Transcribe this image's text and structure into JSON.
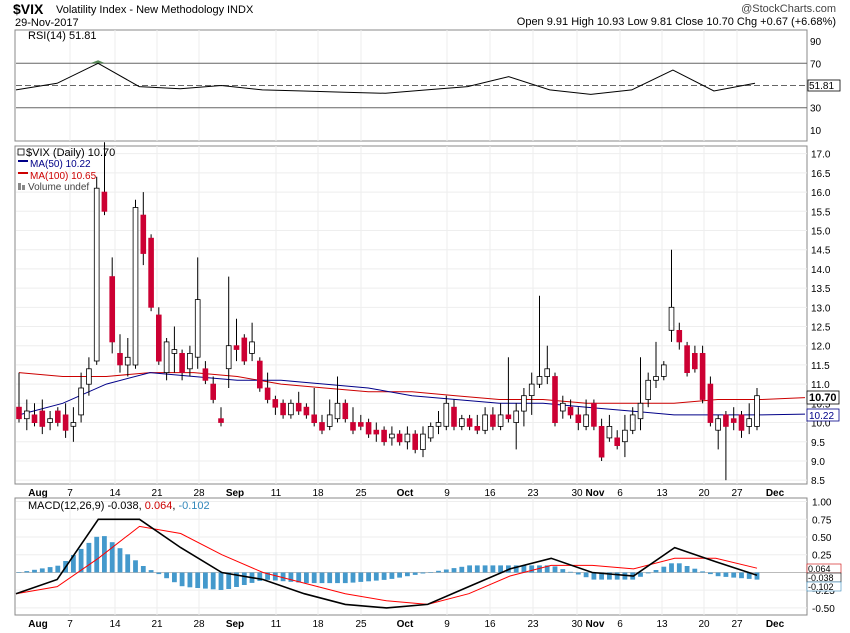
{
  "header": {
    "ticker": "$VIX",
    "name": "Volatility Index - New Methodology",
    "exchange": "INDX",
    "date": "29-Nov-2017",
    "watermark": "@StockCharts.com",
    "ohlc_text": "Open 9.91  High 10.93  Low 9.81  Close 10.70  Chg +0.67 (+6.68%)",
    "arrow_glyph": "▲"
  },
  "rsi_panel": {
    "label": "RSI(14) 51.81",
    "value_tag": "51.81",
    "y_ticks": [
      "90",
      "70",
      "50",
      "30",
      "10"
    ]
  },
  "price_panel": {
    "legend": [
      "$VIX (Daily) 10.70",
      "MA(50) 10.22",
      "MA(100) 10.65",
      "Volume undef"
    ],
    "close_tag": "10.70",
    "ma_tag": "10.22",
    "y_ticks": [
      "17.0",
      "16.5",
      "16.0",
      "15.5",
      "15.0",
      "14.5",
      "14.0",
      "13.5",
      "13.0",
      "12.5",
      "12.0",
      "11.5",
      "11.0",
      "10.5",
      "10.0",
      "9.5",
      "9.0",
      "8.5"
    ]
  },
  "macd_panel": {
    "label_main": "MACD(12,26,9) -0.038",
    "label_signal": "0.064",
    "label_hist": "-0.102",
    "tag_signal": "0.064",
    "tag_macd": "-0.038",
    "tag_hist": "-0.102",
    "y_ticks": [
      "1.00",
      "0.75",
      "0.50",
      "0.25",
      "0.00",
      "-0.25",
      "-0.50"
    ]
  },
  "x_labels": [
    "Aug",
    "7",
    "14",
    "21",
    "28",
    "Sep",
    "11",
    "18",
    "25",
    "Oct",
    "9",
    "16",
    "23",
    "30",
    "Nov",
    "6",
    "13",
    "20",
    "27",
    "Dec"
  ],
  "colors": {
    "up": "#ffffff",
    "down": "#cc0033",
    "ma50": "#000088",
    "ma100": "#cc0000",
    "macd": "#000000",
    "signal": "#ff0000",
    "hist": "#4499cc",
    "rsi_fill": "#558855"
  },
  "chart_data": [
    {
      "type": "line",
      "title": "RSI(14)",
      "ylim": [
        0,
        100
      ],
      "reference_lines": [
        70,
        50,
        30
      ],
      "x": [
        "Aug",
        "7",
        "14",
        "21",
        "28",
        "Sep",
        "11",
        "18",
        "25",
        "Oct",
        "9",
        "16",
        "23",
        "30",
        "Nov",
        "6",
        "13",
        "20",
        "27"
      ],
      "values": [
        46,
        52,
        70,
        49,
        47,
        50,
        46,
        45,
        44,
        43,
        46,
        49,
        58,
        46,
        42,
        46,
        64,
        45,
        52
      ]
    },
    {
      "type": "candlestick",
      "title": "$VIX (Daily) 10.70",
      "ylim": [
        8.4,
        17.2
      ],
      "candles": [
        {
          "o": 10.4,
          "h": 11.3,
          "l": 10.0,
          "c": 10.1
        },
        {
          "o": 10.1,
          "h": 10.6,
          "l": 9.8,
          "c": 10.3
        },
        {
          "o": 10.2,
          "h": 10.5,
          "l": 9.9,
          "c": 10.0
        },
        {
          "o": 10.3,
          "h": 10.6,
          "l": 9.7,
          "c": 9.9
        },
        {
          "o": 10.0,
          "h": 10.3,
          "l": 9.8,
          "c": 10.1
        },
        {
          "o": 10.3,
          "h": 10.4,
          "l": 9.9,
          "c": 10.0
        },
        {
          "o": 10.2,
          "h": 10.5,
          "l": 9.6,
          "c": 9.8
        },
        {
          "o": 9.9,
          "h": 10.4,
          "l": 9.5,
          "c": 10.0
        },
        {
          "o": 10.2,
          "h": 11.3,
          "l": 10.0,
          "c": 10.9
        },
        {
          "o": 11.0,
          "h": 11.7,
          "l": 10.7,
          "c": 11.4
        },
        {
          "o": 11.6,
          "h": 16.4,
          "l": 11.5,
          "c": 16.1
        },
        {
          "o": 16.0,
          "h": 17.3,
          "l": 15.4,
          "c": 15.5
        },
        {
          "o": 13.8,
          "h": 14.3,
          "l": 11.8,
          "c": 12.1
        },
        {
          "o": 11.8,
          "h": 12.3,
          "l": 11.3,
          "c": 11.5
        },
        {
          "o": 11.5,
          "h": 12.2,
          "l": 11.2,
          "c": 11.7
        },
        {
          "o": 11.5,
          "h": 15.8,
          "l": 11.4,
          "c": 15.6
        },
        {
          "o": 15.4,
          "h": 16.0,
          "l": 14.1,
          "c": 14.4
        },
        {
          "o": 14.8,
          "h": 14.9,
          "l": 12.9,
          "c": 13.0
        },
        {
          "o": 12.8,
          "h": 13.0,
          "l": 11.5,
          "c": 11.6
        },
        {
          "o": 11.3,
          "h": 12.2,
          "l": 11.1,
          "c": 12.1
        },
        {
          "o": 11.8,
          "h": 12.5,
          "l": 11.3,
          "c": 11.9
        },
        {
          "o": 11.8,
          "h": 11.9,
          "l": 11.1,
          "c": 11.3
        },
        {
          "o": 11.4,
          "h": 12.0,
          "l": 11.2,
          "c": 11.8
        },
        {
          "o": 11.7,
          "h": 14.3,
          "l": 11.4,
          "c": 13.2
        },
        {
          "o": 11.4,
          "h": 11.6,
          "l": 11.0,
          "c": 11.1
        },
        {
          "o": 11.0,
          "h": 11.2,
          "l": 10.5,
          "c": 10.6
        },
        {
          "o": 10.1,
          "h": 10.4,
          "l": 9.9,
          "c": 10.0
        },
        {
          "o": 11.4,
          "h": 13.8,
          "l": 10.9,
          "c": 12.0
        },
        {
          "o": 12.0,
          "h": 12.7,
          "l": 11.6,
          "c": 11.9
        },
        {
          "o": 12.2,
          "h": 12.3,
          "l": 11.5,
          "c": 11.6
        },
        {
          "o": 11.8,
          "h": 12.6,
          "l": 11.6,
          "c": 12.1
        },
        {
          "o": 11.6,
          "h": 11.7,
          "l": 10.8,
          "c": 10.9
        },
        {
          "o": 10.9,
          "h": 11.3,
          "l": 10.5,
          "c": 10.6
        },
        {
          "o": 10.6,
          "h": 10.7,
          "l": 10.2,
          "c": 10.4
        },
        {
          "o": 10.5,
          "h": 10.6,
          "l": 10.1,
          "c": 10.2
        },
        {
          "o": 10.2,
          "h": 10.6,
          "l": 10.1,
          "c": 10.5
        },
        {
          "o": 10.5,
          "h": 10.8,
          "l": 10.2,
          "c": 10.3
        },
        {
          "o": 10.4,
          "h": 10.5,
          "l": 10.1,
          "c": 10.2
        },
        {
          "o": 10.2,
          "h": 10.9,
          "l": 9.9,
          "c": 10.0
        },
        {
          "o": 10.0,
          "h": 10.2,
          "l": 9.7,
          "c": 9.8
        },
        {
          "o": 9.9,
          "h": 10.6,
          "l": 9.8,
          "c": 10.2
        },
        {
          "o": 10.1,
          "h": 11.2,
          "l": 10.0,
          "c": 10.5
        },
        {
          "o": 10.5,
          "h": 10.6,
          "l": 10.0,
          "c": 10.1
        },
        {
          "o": 10.0,
          "h": 10.4,
          "l": 9.7,
          "c": 9.8
        },
        {
          "o": 10.0,
          "h": 10.2,
          "l": 9.8,
          "c": 9.9
        },
        {
          "o": 10.0,
          "h": 10.1,
          "l": 9.6,
          "c": 9.7
        },
        {
          "o": 9.8,
          "h": 10.0,
          "l": 9.5,
          "c": 9.7
        },
        {
          "o": 9.8,
          "h": 9.9,
          "l": 9.4,
          "c": 9.5
        },
        {
          "o": 9.6,
          "h": 9.9,
          "l": 9.4,
          "c": 9.7
        },
        {
          "o": 9.7,
          "h": 9.8,
          "l": 9.4,
          "c": 9.5
        },
        {
          "o": 9.5,
          "h": 9.9,
          "l": 9.3,
          "c": 9.7
        },
        {
          "o": 9.7,
          "h": 9.8,
          "l": 9.2,
          "c": 9.3
        },
        {
          "o": 9.3,
          "h": 9.9,
          "l": 9.1,
          "c": 9.7
        },
        {
          "o": 9.6,
          "h": 10.0,
          "l": 9.5,
          "c": 9.9
        },
        {
          "o": 9.9,
          "h": 10.3,
          "l": 9.7,
          "c": 10.0
        },
        {
          "o": 9.9,
          "h": 10.7,
          "l": 9.8,
          "c": 10.5
        },
        {
          "o": 10.4,
          "h": 10.6,
          "l": 9.8,
          "c": 9.9
        },
        {
          "o": 9.9,
          "h": 10.2,
          "l": 9.8,
          "c": 10.1
        },
        {
          "o": 10.1,
          "h": 10.2,
          "l": 9.8,
          "c": 9.9
        },
        {
          "o": 9.9,
          "h": 10.2,
          "l": 9.7,
          "c": 9.8
        },
        {
          "o": 9.8,
          "h": 10.4,
          "l": 9.7,
          "c": 10.2
        },
        {
          "o": 10.2,
          "h": 10.4,
          "l": 9.8,
          "c": 9.9
        },
        {
          "o": 9.9,
          "h": 10.5,
          "l": 9.8,
          "c": 10.2
        },
        {
          "o": 10.2,
          "h": 11.7,
          "l": 10.0,
          "c": 10.1
        },
        {
          "o": 10.0,
          "h": 10.5,
          "l": 9.3,
          "c": 10.3
        },
        {
          "o": 10.3,
          "h": 10.9,
          "l": 9.9,
          "c": 10.7
        },
        {
          "o": 10.7,
          "h": 11.3,
          "l": 10.2,
          "c": 11.0
        },
        {
          "o": 11.0,
          "h": 13.3,
          "l": 10.9,
          "c": 11.2
        },
        {
          "o": 11.2,
          "h": 12.0,
          "l": 11.0,
          "c": 11.4
        },
        {
          "o": 11.2,
          "h": 11.3,
          "l": 9.9,
          "c": 10.0
        },
        {
          "o": 10.3,
          "h": 10.7,
          "l": 10.1,
          "c": 10.5
        },
        {
          "o": 10.4,
          "h": 10.6,
          "l": 10.1,
          "c": 10.2
        },
        {
          "o": 10.2,
          "h": 10.4,
          "l": 9.8,
          "c": 10.0
        },
        {
          "o": 9.9,
          "h": 10.6,
          "l": 9.8,
          "c": 10.2
        },
        {
          "o": 10.5,
          "h": 10.6,
          "l": 9.8,
          "c": 9.9
        },
        {
          "o": 9.9,
          "h": 10.1,
          "l": 9.0,
          "c": 9.1
        },
        {
          "o": 9.6,
          "h": 10.2,
          "l": 9.5,
          "c": 9.9
        },
        {
          "o": 9.6,
          "h": 9.8,
          "l": 9.3,
          "c": 9.4
        },
        {
          "o": 9.5,
          "h": 10.2,
          "l": 9.1,
          "c": 9.8
        },
        {
          "o": 9.8,
          "h": 10.4,
          "l": 9.7,
          "c": 10.2
        },
        {
          "o": 10.1,
          "h": 11.7,
          "l": 9.8,
          "c": 10.5
        },
        {
          "o": 10.6,
          "h": 11.3,
          "l": 10.4,
          "c": 11.1
        },
        {
          "o": 11.1,
          "h": 12.1,
          "l": 10.9,
          "c": 11.2
        },
        {
          "o": 11.2,
          "h": 11.6,
          "l": 11.1,
          "c": 11.5
        },
        {
          "o": 12.4,
          "h": 14.5,
          "l": 12.1,
          "c": 13.0
        },
        {
          "o": 12.4,
          "h": 12.6,
          "l": 11.9,
          "c": 12.1
        },
        {
          "o": 12.0,
          "h": 12.1,
          "l": 11.2,
          "c": 11.3
        },
        {
          "o": 11.8,
          "h": 12.0,
          "l": 11.3,
          "c": 11.4
        },
        {
          "o": 11.8,
          "h": 12.0,
          "l": 10.5,
          "c": 10.6
        },
        {
          "o": 11.0,
          "h": 11.2,
          "l": 9.9,
          "c": 10.0
        },
        {
          "o": 9.8,
          "h": 10.2,
          "l": 9.3,
          "c": 10.1
        },
        {
          "o": 10.2,
          "h": 10.3,
          "l": 8.5,
          "c": 9.9
        },
        {
          "o": 10.1,
          "h": 10.4,
          "l": 9.8,
          "c": 10.0
        },
        {
          "o": 10.2,
          "h": 10.3,
          "l": 9.6,
          "c": 9.8
        },
        {
          "o": 9.9,
          "h": 10.5,
          "l": 9.7,
          "c": 10.1
        },
        {
          "o": 9.9,
          "h": 10.9,
          "l": 9.8,
          "c": 10.7
        }
      ],
      "series": [
        {
          "name": "MA(50)",
          "values": [
            10.2,
            10.5,
            11.0,
            11.3,
            11.2,
            11.1,
            11.1,
            11.0,
            10.9,
            10.7,
            10.6,
            10.5,
            10.5,
            10.4,
            10.3,
            10.2,
            10.2,
            10.2,
            10.22
          ]
        },
        {
          "name": "MA(100)",
          "values": [
            11.3,
            11.2,
            11.2,
            11.3,
            11.3,
            11.2,
            11.0,
            10.9,
            10.8,
            10.8,
            10.7,
            10.6,
            10.6,
            10.5,
            10.5,
            10.5,
            10.6,
            10.6,
            10.65
          ]
        }
      ]
    },
    {
      "type": "line",
      "title": "MACD(12,26,9)",
      "ylim": [
        -0.6,
        1.05
      ],
      "x": [
        "Aug",
        "7",
        "14",
        "21",
        "28",
        "Sep",
        "11",
        "18",
        "25",
        "Oct",
        "9",
        "16",
        "23",
        "30",
        "Nov",
        "6",
        "13",
        "20",
        "27"
      ],
      "series": [
        {
          "name": "MACD",
          "values": [
            -0.3,
            -0.1,
            0.75,
            0.75,
            0.35,
            0.0,
            -0.1,
            -0.3,
            -0.45,
            -0.5,
            -0.45,
            -0.2,
            0.05,
            0.2,
            0.0,
            -0.05,
            0.35,
            0.15,
            -0.04
          ]
        },
        {
          "name": "Signal",
          "values": [
            -0.3,
            -0.2,
            0.2,
            0.65,
            0.55,
            0.25,
            0.0,
            -0.15,
            -0.3,
            -0.4,
            -0.45,
            -0.3,
            -0.05,
            0.1,
            0.1,
            0.05,
            0.2,
            0.2,
            0.06
          ]
        },
        {
          "name": "Histogram",
          "values": [
            0.0,
            0.1,
            0.55,
            0.1,
            -0.2,
            -0.25,
            -0.1,
            -0.15,
            -0.15,
            -0.1,
            0.0,
            0.1,
            0.1,
            0.1,
            -0.1,
            -0.1,
            0.15,
            -0.05,
            -0.1
          ]
        }
      ]
    }
  ]
}
